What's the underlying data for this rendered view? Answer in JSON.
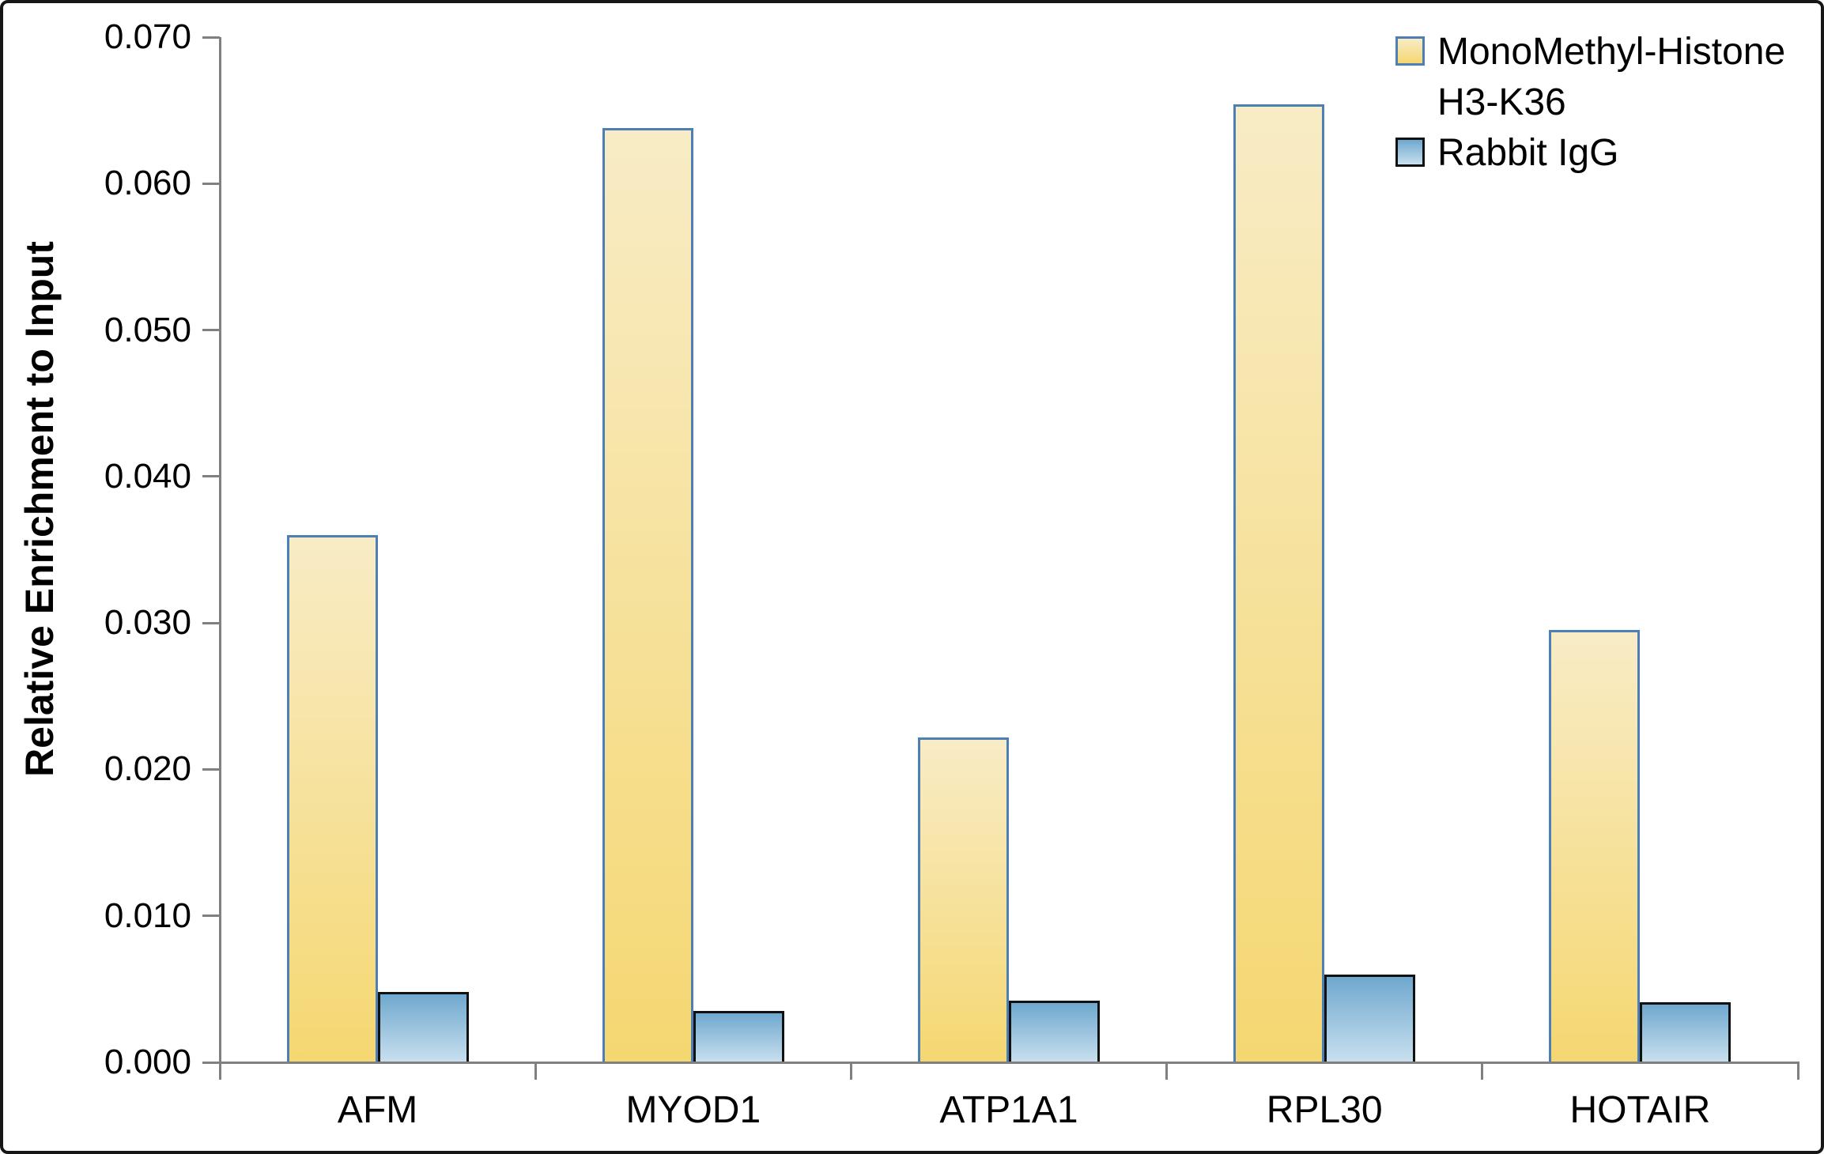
{
  "chart_data": {
    "type": "bar",
    "categories": [
      "AFM",
      "MYOD1",
      "ATP1A1",
      "RPL30",
      "HOTAIR"
    ],
    "series": [
      {
        "name": "MonoMethyl-Histone H3-K36",
        "values": [
          0.036,
          0.0638,
          0.0222,
          0.0654,
          0.0295
        ]
      },
      {
        "name": "Rabbit IgG",
        "values": [
          0.0048,
          0.0035,
          0.0042,
          0.006,
          0.0041
        ]
      }
    ],
    "title": "",
    "xlabel": "",
    "ylabel": "Relative Enrichment to Input",
    "ylim": [
      0,
      0.07
    ],
    "yticks": {
      "values": [
        0,
        0.01,
        0.02,
        0.03,
        0.04,
        0.05,
        0.06,
        0.07
      ],
      "labels": [
        "0.000",
        "0.010",
        "0.020",
        "0.030",
        "0.040",
        "0.050",
        "0.060",
        "0.070"
      ]
    },
    "grid": false,
    "legend_position": "top-right"
  },
  "legend": {
    "items": [
      {
        "id": "monomethyl-histone-h3-k36",
        "lines": [
          "MonoMethyl-Histone",
          "H3-K36"
        ],
        "swatch": "yellow-gradient-swatch"
      },
      {
        "id": "rabbit-igg",
        "lines": [
          "Rabbit IgG"
        ],
        "swatch": "blue-gradient-swatch"
      }
    ]
  },
  "colors": {
    "series_yellow": {
      "top": "#F8ECC6",
      "bottom": "#F5D771",
      "border": "#4C7FB5"
    },
    "series_blue": {
      "top": "#6FA8CE",
      "bottom": "#C9E0EF",
      "border": "#111111"
    },
    "axis": "#808080",
    "text": "#000000",
    "frame_border": "#161616",
    "background": "#FFFFFF"
  }
}
